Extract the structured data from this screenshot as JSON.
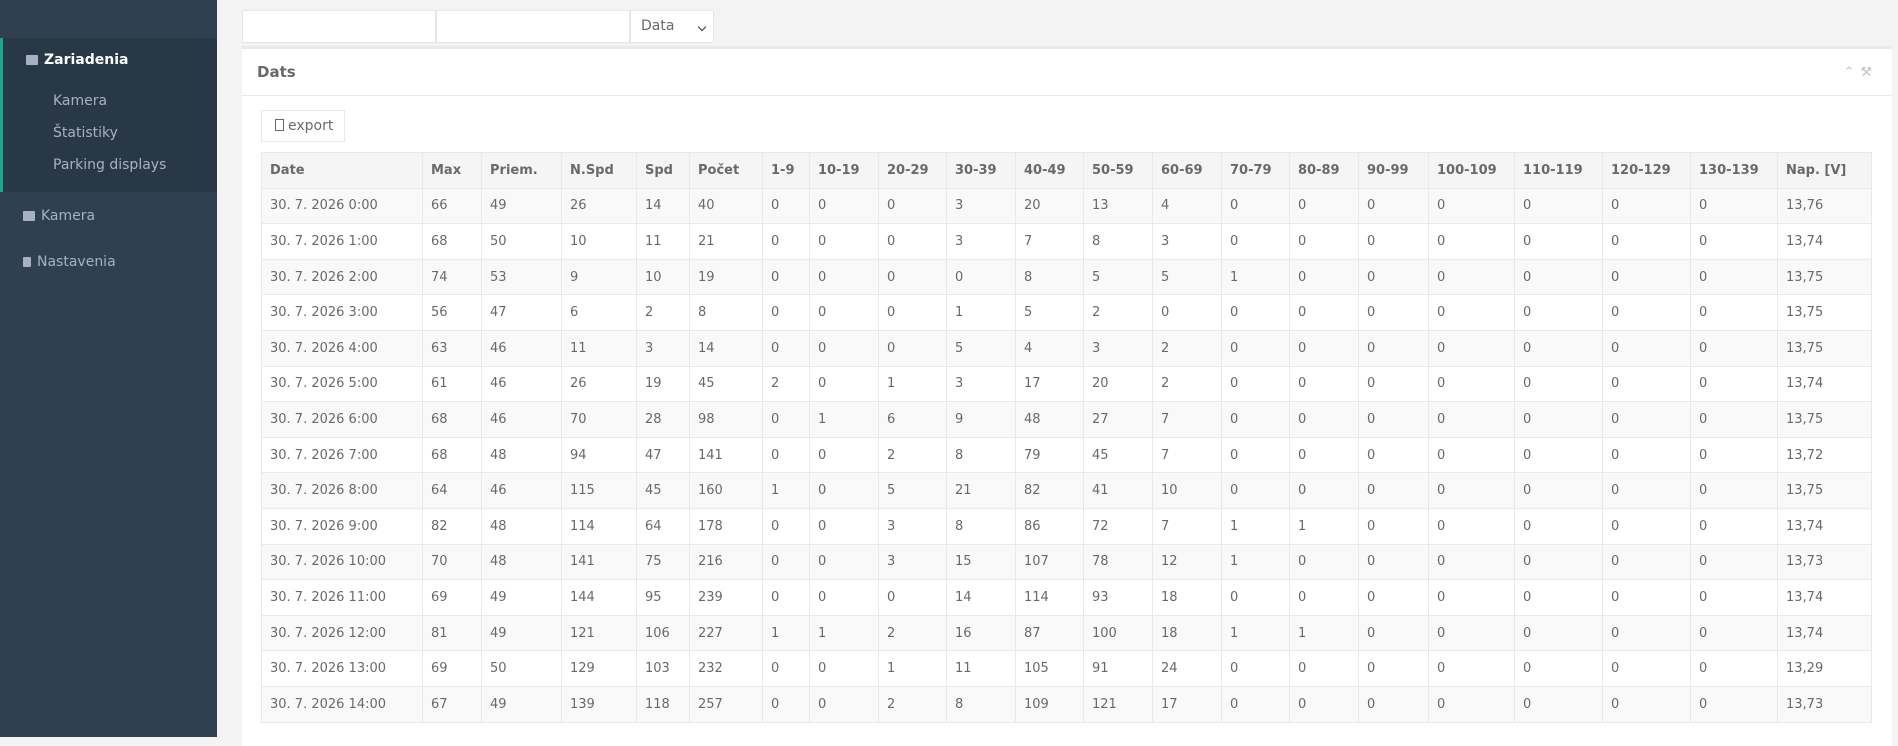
{
  "sidebar": {
    "items": [
      "Zariadenia",
      "Kamera",
      "Štatistiky",
      "Parking displays",
      "Kamera",
      "Nastavenia"
    ]
  },
  "filters": {
    "select": "Data"
  },
  "panel": {
    "title": "Dats",
    "export": "export"
  },
  "table": {
    "headers": [
      "Date",
      "Max",
      "Priem.",
      "N.Spd",
      "Spd",
      "Počet",
      "1-9",
      "10-19",
      "20-29",
      "30-39",
      "40-49",
      "50-59",
      "60-69",
      "70-79",
      "80-89",
      "90-99",
      "100-109",
      "110-119",
      "120-129",
      "130-139",
      "Nap. [V]"
    ],
    "rows": [
      [
        "30. 7. 2026 0:00",
        "66",
        "49",
        "26",
        "14",
        "40",
        "0",
        "0",
        "0",
        "3",
        "20",
        "13",
        "4",
        "0",
        "0",
        "0",
        "0",
        "0",
        "0",
        "0",
        "13,76"
      ],
      [
        "30. 7. 2026 1:00",
        "68",
        "50",
        "10",
        "11",
        "21",
        "0",
        "0",
        "0",
        "3",
        "7",
        "8",
        "3",
        "0",
        "0",
        "0",
        "0",
        "0",
        "0",
        "0",
        "13,74"
      ],
      [
        "30. 7. 2026 2:00",
        "74",
        "53",
        "9",
        "10",
        "19",
        "0",
        "0",
        "0",
        "0",
        "8",
        "5",
        "5",
        "1",
        "0",
        "0",
        "0",
        "0",
        "0",
        "0",
        "13,75"
      ],
      [
        "30. 7. 2026 3:00",
        "56",
        "47",
        "6",
        "2",
        "8",
        "0",
        "0",
        "0",
        "1",
        "5",
        "2",
        "0",
        "0",
        "0",
        "0",
        "0",
        "0",
        "0",
        "0",
        "13,75"
      ],
      [
        "30. 7. 2026 4:00",
        "63",
        "46",
        "11",
        "3",
        "14",
        "0",
        "0",
        "0",
        "5",
        "4",
        "3",
        "2",
        "0",
        "0",
        "0",
        "0",
        "0",
        "0",
        "0",
        "13,75"
      ],
      [
        "30. 7. 2026 5:00",
        "61",
        "46",
        "26",
        "19",
        "45",
        "2",
        "0",
        "1",
        "3",
        "17",
        "20",
        "2",
        "0",
        "0",
        "0",
        "0",
        "0",
        "0",
        "0",
        "13,74"
      ],
      [
        "30. 7. 2026 6:00",
        "68",
        "46",
        "70",
        "28",
        "98",
        "0",
        "1",
        "6",
        "9",
        "48",
        "27",
        "7",
        "0",
        "0",
        "0",
        "0",
        "0",
        "0",
        "0",
        "13,75"
      ],
      [
        "30. 7. 2026 7:00",
        "68",
        "48",
        "94",
        "47",
        "141",
        "0",
        "0",
        "2",
        "8",
        "79",
        "45",
        "7",
        "0",
        "0",
        "0",
        "0",
        "0",
        "0",
        "0",
        "13,72"
      ],
      [
        "30. 7. 2026 8:00",
        "64",
        "46",
        "115",
        "45",
        "160",
        "1",
        "0",
        "5",
        "21",
        "82",
        "41",
        "10",
        "0",
        "0",
        "0",
        "0",
        "0",
        "0",
        "0",
        "13,75"
      ],
      [
        "30. 7. 2026 9:00",
        "82",
        "48",
        "114",
        "64",
        "178",
        "0",
        "0",
        "3",
        "8",
        "86",
        "72",
        "7",
        "1",
        "1",
        "0",
        "0",
        "0",
        "0",
        "0",
        "13,74"
      ],
      [
        "30. 7. 2026 10:00",
        "70",
        "48",
        "141",
        "75",
        "216",
        "0",
        "0",
        "3",
        "15",
        "107",
        "78",
        "12",
        "1",
        "0",
        "0",
        "0",
        "0",
        "0",
        "0",
        "13,73"
      ],
      [
        "30. 7. 2026 11:00",
        "69",
        "49",
        "144",
        "95",
        "239",
        "0",
        "0",
        "0",
        "14",
        "114",
        "93",
        "18",
        "0",
        "0",
        "0",
        "0",
        "0",
        "0",
        "0",
        "13,74"
      ],
      [
        "30. 7. 2026 12:00",
        "81",
        "49",
        "121",
        "106",
        "227",
        "1",
        "1",
        "2",
        "16",
        "87",
        "100",
        "18",
        "1",
        "1",
        "0",
        "0",
        "0",
        "0",
        "0",
        "13,74"
      ],
      [
        "30. 7. 2026 13:00",
        "69",
        "50",
        "129",
        "103",
        "232",
        "0",
        "0",
        "1",
        "11",
        "105",
        "91",
        "24",
        "0",
        "0",
        "0",
        "0",
        "0",
        "0",
        "0",
        "13,29"
      ],
      [
        "30. 7. 2026 14:00",
        "67",
        "49",
        "139",
        "118",
        "257",
        "0",
        "0",
        "2",
        "8",
        "109",
        "121",
        "17",
        "0",
        "0",
        "0",
        "0",
        "0",
        "0",
        "0",
        "13,73"
      ]
    ]
  }
}
